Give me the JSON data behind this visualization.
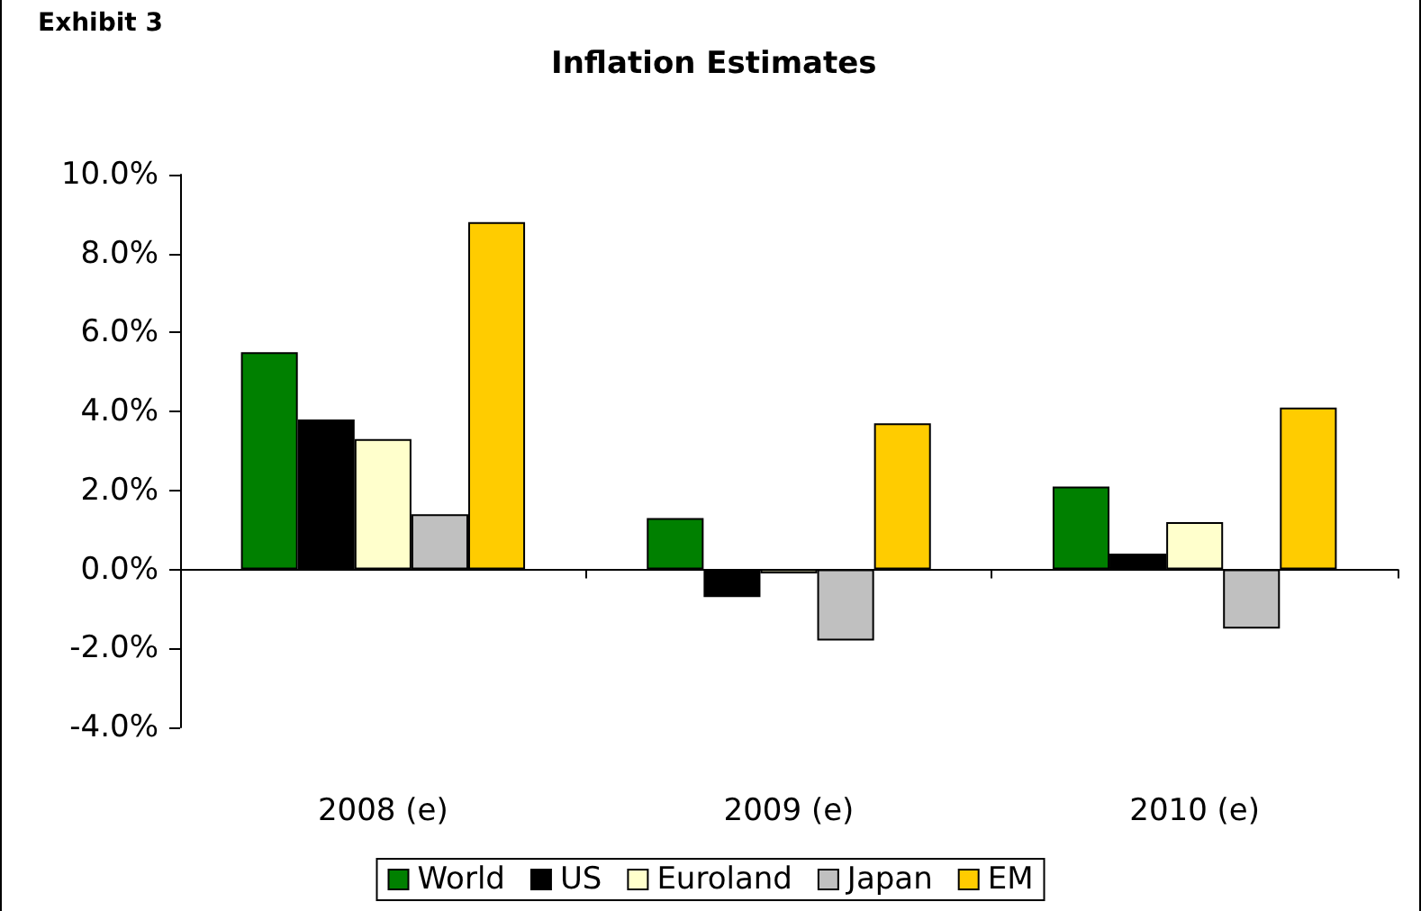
{
  "chart_data": {
    "type": "bar",
    "title": "Inflation Estimates",
    "annotations": [
      "Exhibit 3"
    ],
    "categories": [
      "2008 (e)",
      "2009 (e)",
      "2010 (e)"
    ],
    "series": [
      {
        "name": "World",
        "color": "#008000",
        "values": [
          5.5,
          1.3,
          2.1
        ]
      },
      {
        "name": "US",
        "color": "#000000",
        "values": [
          3.8,
          -0.7,
          0.4
        ]
      },
      {
        "name": "Euroland",
        "color": "#ffffcc",
        "values": [
          3.3,
          -0.1,
          1.2
        ]
      },
      {
        "name": "Japan",
        "color": "#c0c0c0",
        "values": [
          1.4,
          -1.8,
          -1.5
        ]
      },
      {
        "name": "EM",
        "color": "#ffcc00",
        "values": [
          8.8,
          3.7,
          4.1
        ]
      }
    ],
    "ylim": [
      -4,
      10
    ],
    "yticks": [
      {
        "value": -4,
        "label": "-4.0%"
      },
      {
        "value": -2,
        "label": "-2.0%"
      },
      {
        "value": 0,
        "label": "0.0%"
      },
      {
        "value": 2,
        "label": "2.0%"
      },
      {
        "value": 4,
        "label": "4.0%"
      },
      {
        "value": 6,
        "label": "6.0%"
      },
      {
        "value": 8,
        "label": "8.0%"
      },
      {
        "value": 10,
        "label": "10.0%"
      }
    ],
    "legend": "bottom"
  }
}
